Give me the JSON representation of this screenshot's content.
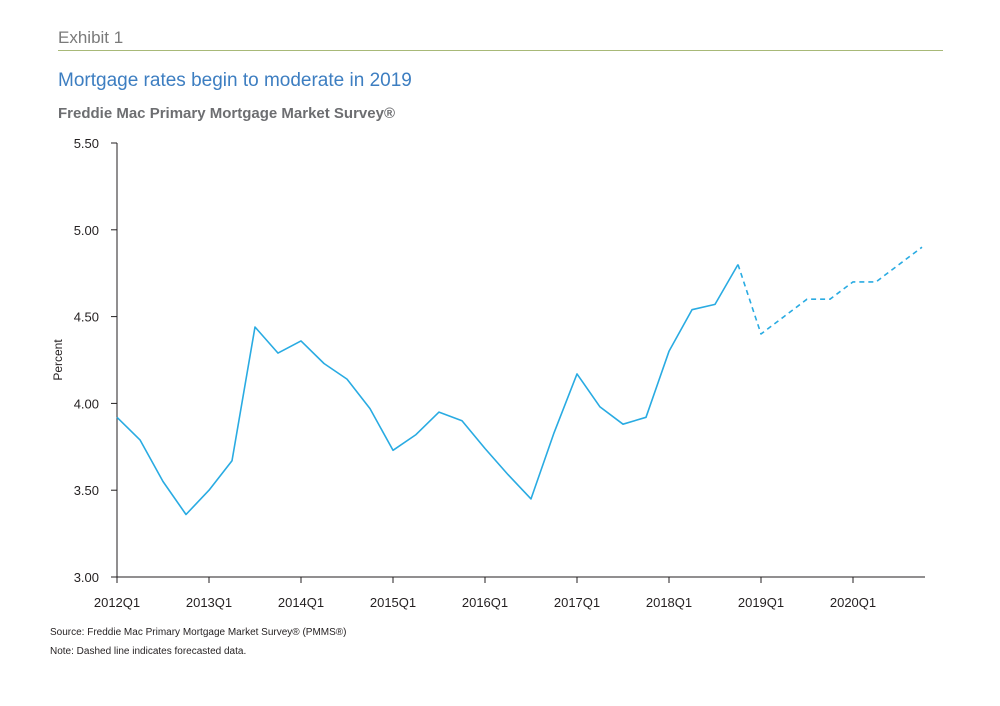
{
  "header": {
    "exhibit_label": "Exhibit 1",
    "title": "Mortgage rates begin to moderate in 2019",
    "subtitle": "Freddie Mac Primary Mortgage Market Survey®"
  },
  "footer": {
    "source": "Source: Freddie Mac Primary Mortgage Market Survey® (PMMS®)",
    "note": "Note: Dashed line indicates forecasted data."
  },
  "colors": {
    "line": "#29abe2",
    "title": "#3d7ec1",
    "rule": "#a8b978",
    "axis": "#231f20"
  },
  "chart_data": {
    "type": "line",
    "title": "Mortgage rates begin to moderate in 2019",
    "subtitle": "Freddie Mac Primary Mortgage Market Survey®",
    "xlabel": "",
    "ylabel": "Percent",
    "ylim": [
      3.0,
      5.5
    ],
    "yticks": [
      "3.00",
      "3.50",
      "4.00",
      "4.50",
      "5.00",
      "5.50"
    ],
    "x": [
      "2012Q1",
      "2012Q2",
      "2012Q3",
      "2012Q4",
      "2013Q1",
      "2013Q2",
      "2013Q3",
      "2013Q4",
      "2014Q1",
      "2014Q2",
      "2014Q3",
      "2014Q4",
      "2015Q1",
      "2015Q2",
      "2015Q3",
      "2015Q4",
      "2016Q1",
      "2016Q2",
      "2016Q3",
      "2016Q4",
      "2017Q1",
      "2017Q2",
      "2017Q3",
      "2017Q4",
      "2018Q1",
      "2018Q2",
      "2018Q3",
      "2018Q4",
      "2019Q1",
      "2019Q2",
      "2019Q3",
      "2019Q4",
      "2020Q1",
      "2020Q2",
      "2020Q3",
      "2020Q4"
    ],
    "xtick_labels": [
      "2012Q1",
      "2013Q1",
      "2014Q1",
      "2015Q1",
      "2016Q1",
      "2017Q1",
      "2018Q1",
      "2019Q1",
      "2020Q1"
    ],
    "grid": false,
    "series": [
      {
        "style": "solid",
        "x": [
          "2012Q1",
          "2012Q2",
          "2012Q3",
          "2012Q4",
          "2013Q1",
          "2013Q2",
          "2013Q3",
          "2013Q4",
          "2014Q1",
          "2014Q2",
          "2014Q3",
          "2014Q4",
          "2015Q1",
          "2015Q2",
          "2015Q3",
          "2015Q4",
          "2016Q1",
          "2016Q2",
          "2016Q3",
          "2016Q4",
          "2017Q1",
          "2017Q2",
          "2017Q3",
          "2017Q4",
          "2018Q1",
          "2018Q2",
          "2018Q3",
          "2018Q4"
        ],
        "values": [
          3.92,
          3.79,
          3.55,
          3.36,
          3.5,
          3.67,
          4.44,
          4.29,
          4.36,
          4.23,
          4.14,
          3.97,
          3.73,
          3.82,
          3.95,
          3.9,
          3.74,
          3.59,
          3.45,
          3.83,
          4.17,
          3.98,
          3.88,
          3.92,
          4.3,
          4.54,
          4.57,
          4.8
        ]
      },
      {
        "style": "dashed",
        "x": [
          "2018Q4",
          "2019Q1",
          "2019Q2",
          "2019Q3",
          "2019Q4",
          "2020Q1",
          "2020Q2",
          "2020Q3",
          "2020Q4"
        ],
        "values": [
          4.8,
          4.4,
          4.5,
          4.6,
          4.6,
          4.7,
          4.7,
          4.8,
          4.9
        ]
      }
    ]
  }
}
